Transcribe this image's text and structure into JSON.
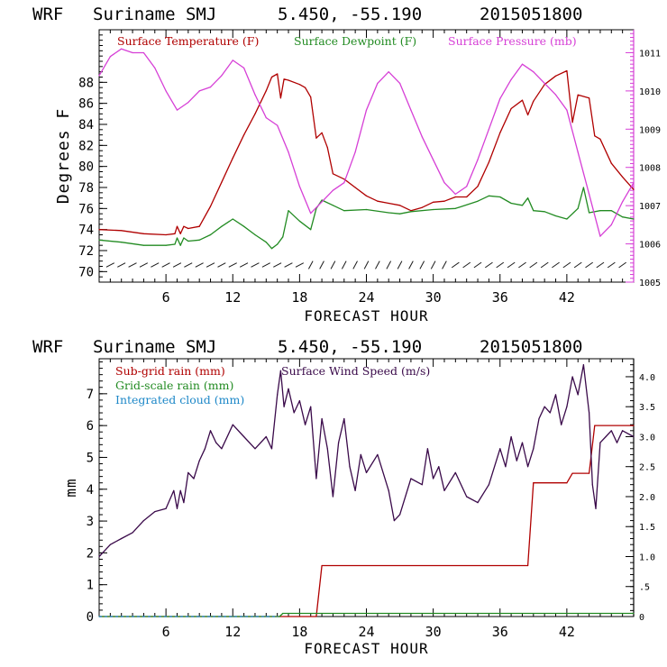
{
  "chart_data": [
    {
      "type": "line",
      "header": {
        "model": "WRF",
        "location": "Suriname SMJ",
        "coords": "5.450, -55.190",
        "init": "2015051800"
      },
      "xlabel": "FORECAST HOUR",
      "ylabel": "Degrees F",
      "xlim": [
        0,
        48
      ],
      "ylim": [
        69,
        93
      ],
      "y2lim": [
        1005,
        1011.6
      ],
      "xticks": [
        "6",
        "12",
        "18",
        "24",
        "30",
        "36",
        "42"
      ],
      "yticks": [
        "70",
        "72",
        "74",
        "76",
        "78",
        "80",
        "82",
        "84",
        "86",
        "88"
      ],
      "y2ticks": [
        "1005",
        "1006",
        "1007",
        "1008",
        "1009",
        "1010",
        "1011"
      ],
      "grid": false,
      "legend_position": "top",
      "series": [
        {
          "name": "Surface Temperature (F)",
          "axis": "left",
          "color": "#b00000",
          "x": [
            0,
            2,
            4,
            6,
            6.8,
            7,
            7.3,
            7.6,
            8,
            9,
            10,
            11,
            12,
            13,
            14,
            15,
            15.5,
            16,
            16.3,
            16.6,
            17,
            18,
            18.5,
            19,
            19.5,
            20,
            20.5,
            21,
            22,
            23,
            24,
            25,
            26,
            27,
            28,
            29,
            30,
            31,
            32,
            33,
            34,
            35,
            36,
            37,
            38,
            38.5,
            39,
            40,
            41,
            42,
            42.5,
            43,
            44,
            44.5,
            45,
            46,
            47,
            48
          ],
          "values": [
            74,
            73.9,
            73.6,
            73.5,
            73.6,
            74.3,
            73.6,
            74.3,
            74.1,
            74.3,
            76.2,
            78.5,
            80.8,
            83,
            85,
            87.2,
            88.5,
            88.8,
            86.5,
            88.3,
            88.2,
            87.8,
            87.5,
            86.6,
            82.7,
            83.2,
            81.8,
            79.3,
            78.8,
            78,
            77.2,
            76.7,
            76.5,
            76.3,
            75.8,
            76.1,
            76.6,
            76.7,
            77.1,
            77.1,
            78.1,
            80.4,
            83.2,
            85.5,
            86.3,
            84.9,
            86.2,
            87.8,
            88.6,
            89.1,
            84.2,
            86.8,
            86.5,
            82.9,
            82.6,
            80.3,
            79,
            77.8
          ]
        },
        {
          "name": "Surface Dewpoint (F)",
          "axis": "left",
          "color": "#228b22",
          "x": [
            0,
            2,
            4,
            6,
            6.8,
            7,
            7.3,
            7.6,
            8,
            9,
            10,
            11,
            12,
            13,
            14,
            15,
            15.5,
            16,
            16.5,
            17,
            18,
            19,
            19.5,
            20,
            21,
            22,
            24,
            26,
            27,
            28,
            30,
            32,
            34,
            35,
            36,
            37,
            38,
            38.5,
            39,
            40,
            41,
            42,
            43,
            43.5,
            44,
            45,
            46,
            47,
            48
          ],
          "values": [
            73,
            72.8,
            72.5,
            72.5,
            72.6,
            73.2,
            72.5,
            73.2,
            72.9,
            73,
            73.5,
            74.3,
            75,
            74.3,
            73.5,
            72.8,
            72.2,
            72.6,
            73.3,
            75.8,
            74.8,
            74,
            76,
            76.8,
            76.3,
            75.8,
            75.9,
            75.6,
            75.5,
            75.7,
            75.9,
            76,
            76.7,
            77.2,
            77.1,
            76.5,
            76.3,
            77,
            75.8,
            75.7,
            75.3,
            75,
            76,
            78,
            75.6,
            75.8,
            75.8,
            75.2,
            75
          ]
        },
        {
          "name": "Surface Pressure (mb)",
          "axis": "right",
          "color": "#d63fd6",
          "x": [
            0,
            1,
            2,
            3,
            4,
            5,
            6,
            7,
            8,
            9,
            10,
            11,
            12,
            13,
            14,
            15,
            16,
            17,
            18,
            19,
            20,
            21,
            22,
            23,
            24,
            25,
            26,
            27,
            28,
            29,
            30,
            31,
            32,
            33,
            34,
            35,
            36,
            37,
            38,
            39,
            40,
            41,
            42,
            43,
            44,
            45,
            46,
            47,
            48
          ],
          "values": [
            1010.4,
            1010.9,
            1011.1,
            1011,
            1011,
            1010.6,
            1010,
            1009.5,
            1009.7,
            1010,
            1010.1,
            1010.4,
            1010.8,
            1010.6,
            1009.9,
            1009.3,
            1009.1,
            1008.4,
            1007.5,
            1006.8,
            1007.1,
            1007.4,
            1007.6,
            1008.4,
            1009.5,
            1010.2,
            1010.5,
            1010.2,
            1009.5,
            1008.8,
            1008.2,
            1007.6,
            1007.3,
            1007.5,
            1008.2,
            1009,
            1009.8,
            1010.3,
            1010.7,
            1010.5,
            1010.2,
            1009.9,
            1009.5,
            1008.4,
            1007.3,
            1006.2,
            1006.5,
            1007.1,
            1007.6
          ]
        }
      ]
    },
    {
      "type": "line",
      "header": {
        "model": "WRF",
        "location": "Suriname SMJ",
        "coords": "5.450, -55.190",
        "init": "2015051800"
      },
      "xlabel": "FORECAST HOUR",
      "ylabel": "mm",
      "xlim": [
        0,
        48
      ],
      "ylim": [
        0,
        8.1
      ],
      "y2lim": [
        0,
        4.3
      ],
      "xticks": [
        "6",
        "12",
        "18",
        "24",
        "30",
        "36",
        "42"
      ],
      "yticks": [
        "0",
        "1",
        "2",
        "3",
        "4",
        "5",
        "6",
        "7"
      ],
      "y2ticks": [
        "0",
        ".5",
        "1.0",
        "1.5",
        "2.0",
        "2.5",
        "3.0",
        "3.5",
        "4.0"
      ],
      "grid": false,
      "legend_position": "top-left",
      "series": [
        {
          "name": "Sub-grid rain (mm)",
          "axis": "left",
          "color": "#b00000",
          "x": [
            0,
            19.5,
            20,
            38.5,
            39,
            42,
            42.5,
            44,
            44.5,
            48
          ],
          "values": [
            0,
            0,
            1.6,
            1.6,
            4.2,
            4.2,
            4.5,
            4.5,
            6.0,
            6.0
          ]
        },
        {
          "name": "Grid-scale rain (mm)",
          "axis": "left",
          "color": "#228b22",
          "x": [
            0,
            16.2,
            16.5,
            48
          ],
          "values": [
            0,
            0,
            0.1,
            0.1
          ]
        },
        {
          "name": "Integrated cloud (mm)",
          "axis": "left",
          "color": "#1e88c8",
          "x": [
            0,
            1,
            2,
            3,
            4,
            5,
            6,
            7,
            8,
            9,
            10,
            11,
            12,
            13,
            14,
            15,
            16
          ],
          "values": [
            0,
            0,
            0,
            0,
            0,
            0,
            0,
            0,
            0,
            0,
            0,
            0,
            0,
            0,
            0,
            0,
            0
          ]
        },
        {
          "name": "Surface Wind Speed (m/s)",
          "axis": "right",
          "color": "#3a0a4a",
          "x": [
            0,
            1,
            2,
            3,
            4,
            5,
            6,
            6.7,
            7,
            7.3,
            7.6,
            8,
            8.5,
            9,
            9.5,
            10,
            10.5,
            11,
            12,
            13,
            14,
            15,
            15.5,
            16,
            16.3,
            16.6,
            17,
            17.5,
            18,
            18.5,
            19,
            19.5,
            20,
            20.5,
            21,
            21.5,
            22,
            22.5,
            23,
            23.5,
            24,
            25,
            26,
            26.5,
            27,
            28,
            29,
            29.5,
            30,
            30.5,
            31,
            32,
            33,
            34,
            35,
            36,
            36.5,
            37,
            37.5,
            38,
            38.5,
            39,
            39.5,
            40,
            40.5,
            41,
            41.5,
            42,
            42.5,
            43,
            43.5,
            44,
            44.3,
            44.6,
            45,
            45.5,
            46,
            46.5,
            47,
            48
          ],
          "values": [
            1.0,
            1.2,
            1.3,
            1.4,
            1.6,
            1.75,
            1.8,
            2.1,
            1.8,
            2.1,
            1.9,
            2.4,
            2.3,
            2.6,
            2.8,
            3.1,
            2.9,
            2.8,
            3.2,
            3.0,
            2.8,
            3.0,
            2.8,
            3.7,
            4.1,
            3.5,
            3.8,
            3.4,
            3.6,
            3.2,
            3.5,
            2.3,
            3.3,
            2.8,
            2.0,
            2.9,
            3.3,
            2.5,
            2.1,
            2.7,
            2.4,
            2.7,
            2.1,
            1.6,
            1.7,
            2.3,
            2.2,
            2.8,
            2.3,
            2.5,
            2.1,
            2.4,
            2.0,
            1.9,
            2.2,
            2.8,
            2.5,
            3.0,
            2.6,
            2.9,
            2.5,
            2.8,
            3.3,
            3.5,
            3.4,
            3.7,
            3.2,
            3.5,
            4.0,
            3.7,
            4.2,
            3.4,
            2.2,
            1.8,
            2.9,
            3.0,
            3.1,
            2.9,
            3.1,
            3.0
          ]
        }
      ]
    }
  ]
}
